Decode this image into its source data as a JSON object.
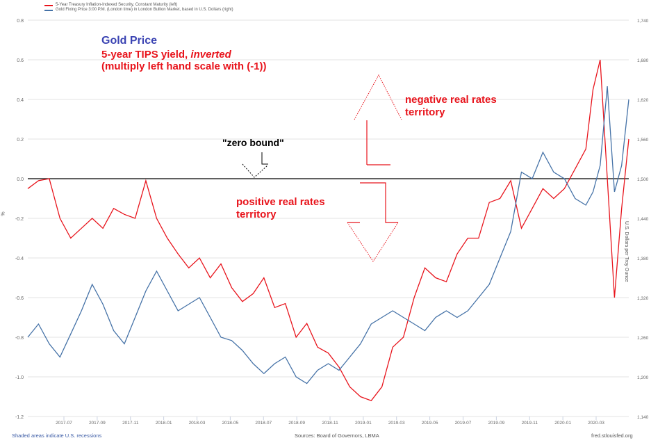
{
  "legend": [
    {
      "label": "5-Year Treasury Inflation-Indexed Security, Constant Maturity (left)",
      "color": "#e8141c"
    },
    {
      "label": "Gold Fixing Price 3:00 P.M. (London time) in London Bullion Market, based in U.S. Dollars (right)",
      "color": "#4572a7"
    }
  ],
  "annotations": {
    "gold_price": "Gold Price",
    "tips_line1": "5-year TIPS yield, ",
    "tips_inverted": "inverted",
    "tips_line2": "(multiply left hand scale with (-1))",
    "negative_line1": "negative real rates",
    "negative_line2": "territory",
    "positive_line1": "positive real rates",
    "positive_line2": "territory",
    "zero_bound": "\"zero bound\""
  },
  "footer": {
    "recessions": "Shaded areas indicate U.S. recessions",
    "sources": "Sources: Board of Governors, LBMA",
    "site": "fred.stlouisfed.org"
  },
  "chart_data": {
    "type": "line",
    "title": "",
    "xlabel": "",
    "ylabel_left": "%",
    "ylabel_right": "U.S. Dollars per Troy Ounce",
    "x_ticks": [
      "2017-07",
      "2017-09",
      "2017-11",
      "2018-01",
      "2018-03",
      "2018-05",
      "2018-07",
      "2018-09",
      "2018-11",
      "2019-01",
      "2019-03",
      "2019-05",
      "2019-07",
      "2019-09",
      "2019-11",
      "2020-01",
      "2020-03"
    ],
    "y_left_ticks": [
      "0.8",
      "0.6",
      "0.4",
      "0.2",
      "0.0",
      "-0.2",
      "-0.4",
      "-0.6",
      "-0.8",
      "-1.0",
      "-1.2"
    ],
    "y_right_ticks": [
      "1,740",
      "1,680",
      "1,620",
      "1,560",
      "1,500",
      "1,440",
      "1,380",
      "1,320",
      "1,260",
      "1,200",
      "1,140"
    ],
    "ylim_left": [
      -1.2,
      0.8
    ],
    "ylim_right": [
      1140,
      1740
    ],
    "x_range": [
      "2017-06",
      "2020-03"
    ],
    "zero_line": 0.0,
    "grid": true,
    "series": [
      {
        "name": "5-Year TIPS yield, inverted (left)",
        "axis": "left",
        "color": "#e8141c",
        "x": [
          0,
          0.3,
          0.6,
          0.9,
          1.2,
          1.5,
          1.8,
          2.1,
          2.4,
          2.7,
          3.0,
          3.3,
          3.6,
          3.9,
          4.2,
          4.5,
          4.8,
          5.1,
          5.4,
          5.7,
          6.0,
          6.3,
          6.6,
          6.9,
          7.2,
          7.5,
          7.8,
          8.1,
          8.4,
          8.7,
          9.0,
          9.3,
          9.6,
          9.9,
          10.2,
          10.5,
          10.8,
          11.1,
          11.4,
          11.7,
          12.0,
          12.3,
          12.6,
          12.9,
          13.2,
          13.5,
          13.8,
          14.1,
          14.4,
          14.7,
          15.0,
          15.3,
          15.6,
          15.8,
          16.0,
          16.2,
          16.4,
          16.6,
          16.8
        ],
        "values": [
          -0.05,
          -0.01,
          0.0,
          -0.2,
          -0.3,
          -0.25,
          -0.2,
          -0.25,
          -0.15,
          -0.18,
          -0.2,
          -0.01,
          -0.2,
          -0.3,
          -0.38,
          -0.45,
          -0.4,
          -0.5,
          -0.43,
          -0.55,
          -0.62,
          -0.58,
          -0.5,
          -0.65,
          -0.63,
          -0.8,
          -0.73,
          -0.85,
          -0.88,
          -0.95,
          -1.05,
          -1.1,
          -1.12,
          -1.05,
          -0.85,
          -0.8,
          -0.6,
          -0.45,
          -0.5,
          -0.52,
          -0.38,
          -0.3,
          -0.3,
          -0.12,
          -0.1,
          -0.01,
          -0.25,
          -0.15,
          -0.05,
          -0.1,
          -0.05,
          0.05,
          0.15,
          0.45,
          0.6,
          0.0,
          -0.6,
          -0.15,
          0.2
        ]
      },
      {
        "name": "Gold Fixing Price (right)",
        "axis": "right",
        "color": "#4572a7",
        "x": [
          0,
          0.3,
          0.6,
          0.9,
          1.2,
          1.5,
          1.8,
          2.1,
          2.4,
          2.7,
          3.0,
          3.3,
          3.6,
          3.9,
          4.2,
          4.5,
          4.8,
          5.1,
          5.4,
          5.7,
          6.0,
          6.3,
          6.6,
          6.9,
          7.2,
          7.5,
          7.8,
          8.1,
          8.4,
          8.7,
          9.0,
          9.3,
          9.6,
          9.9,
          10.2,
          10.5,
          10.8,
          11.1,
          11.4,
          11.7,
          12.0,
          12.3,
          12.6,
          12.9,
          13.2,
          13.5,
          13.8,
          14.1,
          14.4,
          14.7,
          15.0,
          15.3,
          15.6,
          15.8,
          16.0,
          16.2,
          16.4,
          16.6,
          16.8
        ],
        "values": [
          1260,
          1280,
          1250,
          1230,
          1265,
          1300,
          1340,
          1310,
          1270,
          1250,
          1290,
          1330,
          1360,
          1330,
          1300,
          1310,
          1320,
          1290,
          1260,
          1255,
          1240,
          1220,
          1205,
          1220,
          1230,
          1200,
          1190,
          1210,
          1220,
          1210,
          1230,
          1250,
          1280,
          1290,
          1300,
          1290,
          1280,
          1270,
          1290,
          1300,
          1290,
          1300,
          1320,
          1340,
          1380,
          1420,
          1510,
          1500,
          1540,
          1510,
          1500,
          1470,
          1460,
          1480,
          1520,
          1640,
          1480,
          1520,
          1620
        ]
      }
    ]
  }
}
